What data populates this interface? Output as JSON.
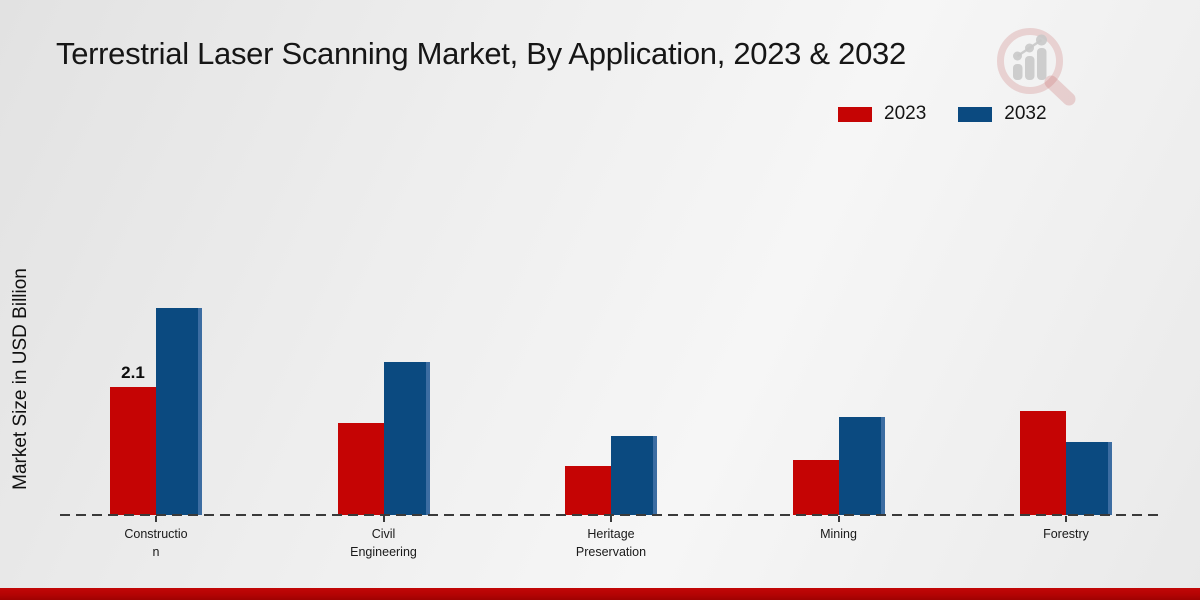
{
  "title": "Terrestrial Laser Scanning Market, By Application, 2023 & 2032",
  "y_axis_label": "Market Size in USD Billion",
  "legend": {
    "position": "top-right",
    "items": [
      {
        "label": "2023",
        "color": "#c50404"
      },
      {
        "label": "2032",
        "color": "#0b4a80"
      }
    ]
  },
  "watermark_icon": "magnifier-bar-chart-logo",
  "colors": {
    "series_2023": "#c50404",
    "series_2032": "#0b4a80",
    "series_2032_edge_highlight": "#3c6da2",
    "baseline": "#3a3a3a",
    "footer_bar": "#b30404",
    "watermark_pink": "rgba(197,90,90,0.22)",
    "watermark_gray": "#c9c9c9"
  },
  "chart_data": {
    "type": "bar",
    "title": "Terrestrial Laser Scanning Market, By Application, 2023 & 2032",
    "xlabel": "",
    "ylabel": "Market Size in USD Billion",
    "units": "USD Billion",
    "categories": [
      "Construction",
      "Civil Engineering",
      "Heritage Preservation",
      "Mining",
      "Forestry"
    ],
    "category_display": [
      "Constructio\nn",
      "Civil\nEngineering",
      "Heritage\nPreservation",
      "Mining",
      "Forestry"
    ],
    "series": [
      {
        "name": "2023",
        "color": "#c50404",
        "values": [
          2.1,
          1.5,
          0.8,
          0.9,
          1.7
        ]
      },
      {
        "name": "2032",
        "color": "#0b4a80",
        "values": [
          3.4,
          2.5,
          1.3,
          1.6,
          1.2
        ]
      }
    ],
    "data_labels": [
      {
        "series_index": 0,
        "category_index": 0,
        "text": "2.1"
      }
    ],
    "ylim": [
      0,
      3.6
    ],
    "y_ticks_visible": false,
    "grid": false,
    "legend_position": "top-right",
    "baseline_style": "dashed"
  }
}
